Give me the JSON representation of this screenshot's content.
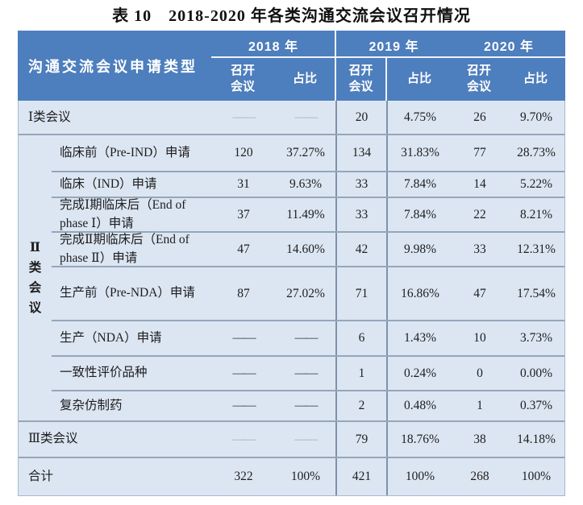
{
  "title": "表 10　2018-2020 年各类沟通交流会议召开情况",
  "table": {
    "row_header": "沟通交流会议申请类型",
    "years": [
      "2018 年",
      "2019 年",
      "2020 年"
    ],
    "sub_cols": [
      "召开\n会议",
      "占比",
      "召开\n会议",
      "占比",
      "召开\n会议",
      "占比"
    ],
    "group_label": "Ⅱ类会议",
    "rows": [
      {
        "label": "Ⅰ类会议",
        "type": "category",
        "muted_dash": true,
        "cells": [
          "——",
          "——",
          "20",
          "4.75%",
          "26",
          "9.70%"
        ]
      },
      {
        "label": "临床前（Pre-IND）申请",
        "type": "sub",
        "cells": [
          "120",
          "37.27%",
          "134",
          "31.83%",
          "77",
          "28.73%"
        ]
      },
      {
        "label": "临床（IND）申请",
        "type": "sub",
        "cells": [
          "31",
          "9.63%",
          "33",
          "7.84%",
          "14",
          "5.22%"
        ]
      },
      {
        "label": "完成Ⅰ期临床后（End of phase Ⅰ）申请",
        "type": "sub",
        "cells": [
          "37",
          "11.49%",
          "33",
          "7.84%",
          "22",
          "8.21%"
        ]
      },
      {
        "label": "完成Ⅱ期临床后（End of phase Ⅱ）申请",
        "type": "sub",
        "cells": [
          "47",
          "14.60%",
          "42",
          "9.98%",
          "33",
          "12.31%"
        ]
      },
      {
        "label": "生产前（Pre-NDA）申请",
        "type": "sub",
        "cells": [
          "87",
          "27.02%",
          "71",
          "16.86%",
          "47",
          "17.54%"
        ]
      },
      {
        "label": "生产（NDA）申请",
        "type": "sub",
        "cells": [
          "——",
          "——",
          "6",
          "1.43%",
          "10",
          "3.73%"
        ]
      },
      {
        "label": "一致性评价品种",
        "type": "sub",
        "cells": [
          "——",
          "——",
          "1",
          "0.24%",
          "0",
          "0.00%"
        ]
      },
      {
        "label": "复杂仿制药",
        "type": "sub",
        "cells": [
          "——",
          "——",
          "2",
          "0.48%",
          "1",
          "0.37%"
        ]
      },
      {
        "label": "Ⅲ类会议",
        "type": "category",
        "muted_dash": true,
        "cells": [
          "——",
          "——",
          "79",
          "18.76%",
          "38",
          "14.18%"
        ]
      },
      {
        "label": "合计",
        "type": "total",
        "cells": [
          "322",
          "100%",
          "421",
          "100%",
          "268",
          "100%"
        ]
      }
    ],
    "colors": {
      "header_bg": "#4d7ebd",
      "body_bg": "#dce6f2",
      "grid_line": "#94a6bb",
      "column_divider": "#7e92aa",
      "header_text": "#ffffff",
      "body_text": "#1d1d1f"
    }
  }
}
